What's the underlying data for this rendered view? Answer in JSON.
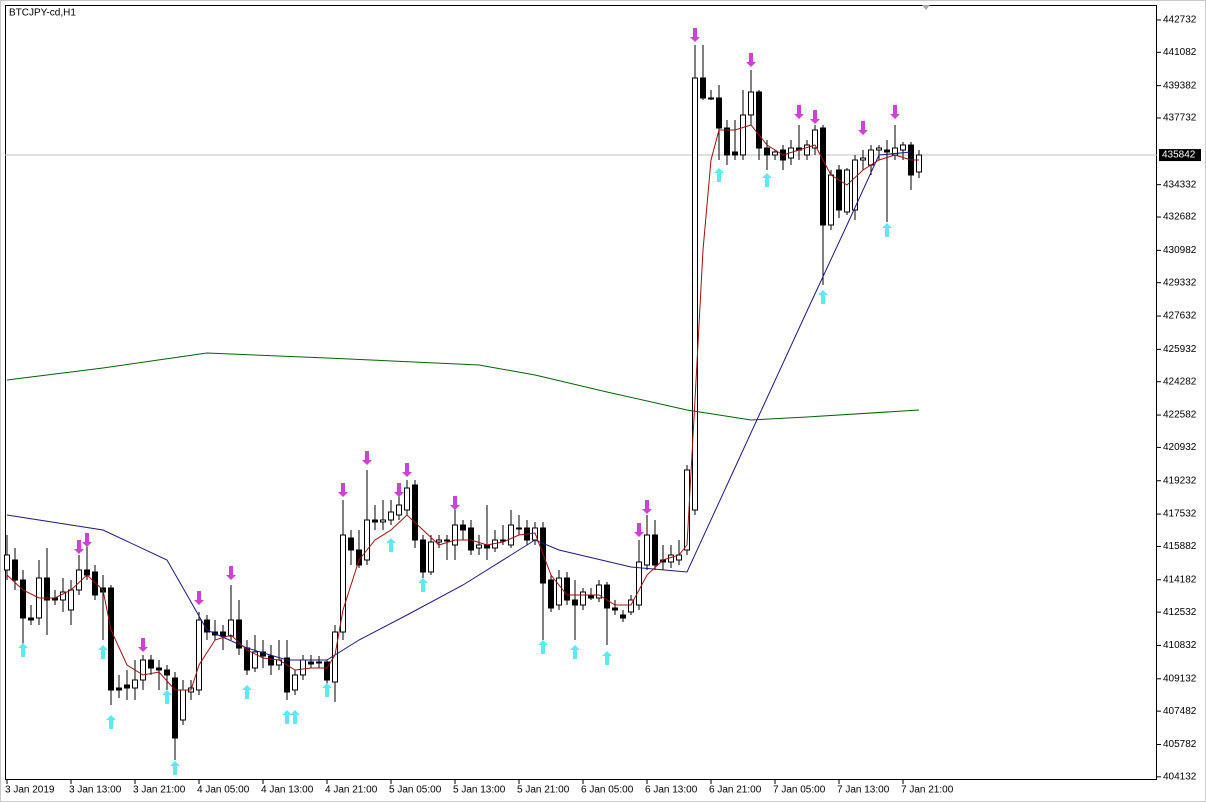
{
  "chart_data": {
    "type": "candlestick",
    "title": "BTCJPY-cd,H1",
    "categories": [
      "3 Jan 2019",
      null,
      null,
      null,
      null,
      null,
      null,
      null,
      "3 Jan 13:00",
      null,
      null,
      null,
      null,
      null,
      null,
      null,
      "3 Jan 21:00",
      null,
      null,
      null,
      null,
      null,
      null,
      null,
      "4 Jan 05:00",
      null,
      null,
      null,
      null,
      null,
      null,
      null,
      "4 Jan 13:00",
      null,
      null,
      null,
      null,
      null,
      null,
      null,
      "4 Jan 21:00",
      null,
      null,
      null,
      null,
      null,
      null,
      null,
      "5 Jan 05:00",
      null,
      null,
      null,
      null,
      null,
      null,
      null,
      "5 Jan 13:00",
      null,
      null,
      null,
      null,
      null,
      null,
      null,
      "5 Jan 21:00",
      null,
      null,
      null,
      null,
      null,
      null,
      null,
      "6 Jan 05:00",
      null,
      null,
      null,
      null,
      null,
      null,
      null,
      "6 Jan 13:00",
      null,
      null,
      null,
      null,
      null,
      null,
      null,
      "6 Jan 21:00",
      null,
      null,
      null,
      null,
      null,
      null,
      null,
      "7 Jan 05:00",
      null,
      null,
      null,
      null,
      null,
      null,
      null,
      "7 Jan 13:00",
      null,
      null,
      null,
      null,
      null,
      null,
      null,
      "7 Jan 21:00",
      null,
      null
    ],
    "open": [
      414680,
      415190,
      414170,
      412232,
      412232,
      414272,
      413252,
      413150,
      412640,
      413660,
      414680,
      414578,
      413762,
      413762,
      408662,
      408815,
      408662,
      409070,
      410090,
      409682,
      409580,
      409172,
      407030,
      408458,
      408560,
      412130,
      411518,
      411518,
      411314,
      412130,
      410702,
      409682,
      410498,
      410294,
      409835,
      410192,
      408560,
      409325,
      409988,
      409988,
      409988,
      408968,
      411518,
      416312,
      415700,
      415190,
      417230,
      417128,
      417230,
      417485,
      417740,
      419015,
      416210,
      414578,
      416108,
      416210,
      415955,
      416975,
      416822,
      415802,
      415955,
      415802,
      416210,
      415955,
      416822,
      416822,
      416210,
      416822,
      414170,
      412895,
      414272,
      413150,
      412895,
      413405,
      413252,
      413915,
      412742,
      412385,
      412538,
      412895,
      414935,
      416465,
      415190,
      415088,
      415190,
      415700,
      417740,
      439772,
      438752,
      438752,
      437222,
      435998,
      435845,
      437885,
      439058,
      436202,
      435845,
      436100,
      435692,
      436202,
      435845,
      436202,
      437222,
      432275,
      435080,
      432938,
      433040,
      435590,
      435335,
      436100,
      436100,
      435845,
      436100,
      436355,
      434978
    ],
    "high": [
      416465,
      415802,
      414680,
      412895,
      415190,
      415802,
      413660,
      414272,
      414170,
      415445,
      415955,
      414935,
      414425,
      413915,
      409325,
      409580,
      410090,
      410345,
      410345,
      410090,
      409835,
      409478,
      409070,
      409070,
      412538,
      412385,
      412130,
      411875,
      413915,
      413150,
      411110,
      411365,
      411110,
      410855,
      411110,
      411110,
      409580,
      410345,
      410345,
      410294,
      410090,
      411875,
      418250,
      416720,
      416720,
      419780,
      417995,
      418250,
      418250,
      418505,
      419270,
      419270,
      416465,
      416465,
      416465,
      416465,
      417995,
      417230,
      417230,
      416465,
      417995,
      416720,
      416975,
      417740,
      417485,
      417230,
      417128,
      417128,
      414425,
      414680,
      414578,
      414170,
      413762,
      413762,
      414170,
      414068,
      413150,
      412640,
      413405,
      416210,
      417485,
      417230,
      415955,
      415955,
      416210,
      420035,
      441455,
      441455,
      439160,
      439415,
      437630,
      437630,
      439160,
      440180,
      439160,
      436610,
      436100,
      436355,
      436610,
      437375,
      436610,
      437375,
      437375,
      435080,
      435335,
      435182,
      435845,
      436100,
      436355,
      436355,
      436610,
      437375,
      436508,
      436508,
      436100
    ],
    "low": [
      414170,
      413660,
      410855,
      411875,
      411875,
      411365,
      412895,
      412538,
      411875,
      413405,
      414170,
      413150,
      411110,
      407795,
      408152,
      408050,
      408050,
      408560,
      409325,
      408560,
      408560,
      404990,
      406775,
      408050,
      408305,
      411110,
      411110,
      410600,
      411110,
      410345,
      409325,
      409478,
      409682,
      409325,
      409580,
      408050,
      408305,
      409070,
      409682,
      409682,
      408560,
      407948,
      411110,
      414935,
      414782,
      414935,
      416720,
      416720,
      416975,
      417230,
      417485,
      415802,
      414272,
      414425,
      415802,
      415190,
      415190,
      416210,
      415445,
      415445,
      415190,
      415598,
      415955,
      415802,
      416465,
      415955,
      415955,
      411110,
      412538,
      412640,
      412895,
      411110,
      412640,
      413150,
      413048,
      410855,
      412385,
      412028,
      412385,
      412640,
      414680,
      414680,
      414680,
      414782,
      414935,
      415445,
      417485,
      438650,
      438650,
      435590,
      435335,
      435590,
      435590,
      437375,
      435590,
      435080,
      435590,
      435080,
      435335,
      435590,
      435590,
      435845,
      429215,
      432020,
      432632,
      432785,
      432530,
      435080,
      434825,
      435590,
      432428,
      435590,
      435590,
      434060,
      434672
    ],
    "close": [
      415445,
      414170,
      412232,
      412130,
      414272,
      413150,
      413150,
      413558,
      413660,
      414680,
      414425,
      413405,
      413558,
      408560,
      408560,
      408662,
      409070,
      410090,
      409682,
      409580,
      409325,
      406112,
      408560,
      408662,
      412130,
      411518,
      411365,
      411314,
      412130,
      410702,
      409580,
      410498,
      410294,
      409835,
      410090,
      408458,
      409325,
      410090,
      409886,
      409988,
      409070,
      411518,
      416465,
      415700,
      414935,
      417230,
      417128,
      417230,
      417638,
      417995,
      418862,
      416210,
      414578,
      416108,
      416210,
      416210,
      416975,
      416720,
      415700,
      415955,
      415802,
      416210,
      416210,
      416975,
      416822,
      416210,
      416822,
      414017,
      412742,
      414272,
      413150,
      412895,
      413558,
      413252,
      413915,
      412742,
      412640,
      412232,
      413150,
      415088,
      416465,
      414935,
      415088,
      415445,
      415445,
      419780,
      439772,
      438752,
      438752,
      437222,
      435845,
      435845,
      437885,
      439058,
      436202,
      435845,
      435998,
      435590,
      436202,
      436100,
      436355,
      437120,
      432275,
      434825,
      433040,
      435080,
      435590,
      435692,
      436100,
      436202,
      435998,
      436202,
      436355,
      434825,
      435845
    ],
    "ylim": [
      403970,
      443495
    ],
    "yticks": [
      442732,
      441082,
      439382,
      437732,
      434332,
      432682,
      430982,
      429332,
      427632,
      425932,
      424282,
      422582,
      420932,
      419232,
      417532,
      415882,
      414182,
      412532,
      410832,
      409132,
      407482,
      405782,
      404132
    ],
    "current_price": 435842,
    "lines": [
      {
        "color": "#006400",
        "x": [
          0,
          12,
          25,
          40,
          59,
          66,
          75,
          85,
          93,
          100,
          114
        ],
        "values": [
          424370,
          424982,
          425747,
          425492,
          425135,
          424625,
          423758,
          422840,
          422330,
          422483,
          422840
        ]
      },
      {
        "color": "#1a1a80",
        "x": [
          0,
          12,
          20,
          25,
          30,
          35,
          40,
          44,
          50,
          57,
          63,
          66,
          69,
          78,
          85,
          90,
          95,
          100,
          105,
          109,
          113
        ],
        "values": [
          417485,
          416720,
          415190,
          411620,
          410702,
          410090,
          410090,
          411110,
          412385,
          413915,
          415445,
          416210,
          415700,
          414833,
          414578,
          419015,
          423452,
          427889,
          432275,
          435845,
          435998
        ]
      },
      {
        "color": "#a01010",
        "x": [
          0,
          2,
          4,
          6,
          8,
          10,
          12,
          13,
          15,
          17,
          19,
          21,
          23,
          24,
          26,
          28,
          30,
          32,
          34,
          36,
          38,
          40,
          41,
          42,
          44,
          46,
          48,
          50,
          52,
          54,
          56,
          58,
          60,
          62,
          64,
          66,
          68,
          70,
          72,
          74,
          76,
          78,
          80,
          82,
          84,
          85,
          86,
          87,
          88,
          89,
          91,
          93,
          95,
          97,
          99,
          101,
          103,
          105,
          107,
          109,
          111,
          113,
          114
        ],
        "values": [
          414425,
          413660,
          413252,
          413252,
          413660,
          414425,
          413660,
          411620,
          409835,
          409325,
          409478,
          408560,
          408560,
          409835,
          411110,
          411365,
          410600,
          410192,
          410090,
          409580,
          409682,
          409682,
          410345,
          412640,
          415190,
          416210,
          416720,
          417485,
          416720,
          415955,
          416210,
          416210,
          415955,
          416108,
          416465,
          416567,
          414425,
          413405,
          413405,
          413405,
          412895,
          412895,
          414425,
          415190,
          415445,
          415955,
          423350,
          431000,
          435590,
          437120,
          437120,
          437375,
          436355,
          435845,
          436100,
          436355,
          434825,
          434315,
          435080,
          435590,
          435845,
          435590,
          435590
        ]
      }
    ],
    "arrows_up": {
      "color": "#5ee8f2",
      "x": [
        2,
        12,
        13,
        20,
        21,
        30,
        35,
        36,
        40,
        48,
        52,
        67,
        71,
        75,
        89,
        95,
        102,
        110
      ],
      "values": [
        410600,
        410498,
        406928,
        408203,
        404582,
        408458,
        407183,
        407183,
        408560,
        415955,
        413915,
        410753,
        410498,
        410192,
        434825,
        434570,
        428603,
        432020
      ]
    },
    "arrows_down": {
      "color": "#d040d8",
      "x": [
        9,
        10,
        17,
        24,
        28,
        42,
        45,
        49,
        50,
        56,
        79,
        80,
        86,
        93,
        99,
        101,
        107,
        111
      ],
      "values": [
        415853,
        416210,
        410855,
        413252,
        414527,
        418760,
        420392,
        418760,
        419780,
        418097,
        416720,
        417893,
        441965,
        440690,
        438038,
        437783,
        437222,
        438038
      ]
    }
  }
}
